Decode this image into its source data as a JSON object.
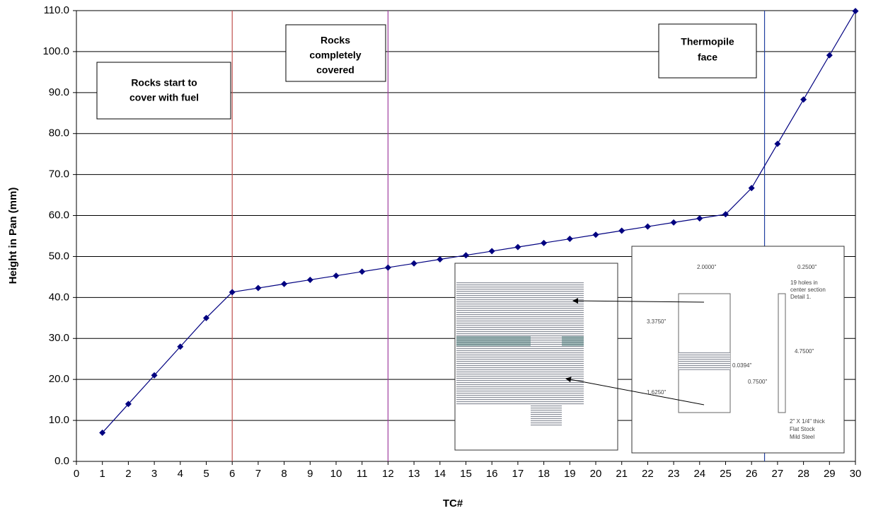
{
  "chart_data": {
    "type": "line",
    "x_label": "TC#",
    "y_label": "Height in Pan (mm)",
    "x": [
      1,
      2,
      3,
      4,
      5,
      6,
      7,
      8,
      9,
      10,
      11,
      12,
      13,
      14,
      15,
      16,
      17,
      18,
      19,
      20,
      21,
      22,
      23,
      24,
      25,
      26,
      27,
      28,
      29,
      30
    ],
    "series": [
      {
        "color": "#000080",
        "values": [
          7,
          14,
          21,
          28,
          35,
          41.3,
          42.3,
          43.3,
          44.3,
          45.3,
          46.3,
          47.3,
          48.3,
          49.3,
          50.3,
          51.3,
          52.3,
          53.3,
          54.3,
          55.3,
          56.3,
          57.3,
          58.3,
          59.3,
          60.3,
          66.7,
          77.5,
          88.3,
          99.1,
          109.9
        ]
      }
    ],
    "xlim": [
      0,
      30
    ],
    "xticks": [
      0,
      1,
      2,
      3,
      4,
      5,
      6,
      7,
      8,
      9,
      10,
      11,
      12,
      13,
      14,
      15,
      16,
      17,
      18,
      19,
      20,
      21,
      22,
      23,
      24,
      25,
      26,
      27,
      28,
      29,
      30
    ],
    "ylim": [
      0,
      110
    ],
    "yticks": [
      {
        "value": 0,
        "label": "0.0"
      },
      {
        "value": 10,
        "label": "10.0"
      },
      {
        "value": 20,
        "label": "20.0"
      },
      {
        "value": 30,
        "label": "30.0"
      },
      {
        "value": 40,
        "label": "40.0"
      },
      {
        "value": 50,
        "label": "50.0"
      },
      {
        "value": 60,
        "label": "60.0"
      },
      {
        "value": 70,
        "label": "70.0"
      },
      {
        "value": 80,
        "label": "80.0"
      },
      {
        "value": 90,
        "label": "90.0"
      },
      {
        "value": 100,
        "label": "100.0"
      },
      {
        "value": 110,
        "label": "110.0"
      }
    ],
    "grid": true,
    "vlines": [
      {
        "x": 6,
        "color": "#c0504d"
      },
      {
        "x": 12,
        "color": "#a040a0"
      },
      {
        "x": 26.5,
        "color": "#1f3fa0"
      }
    ],
    "annotations": [
      {
        "text": [
          "Rocks start to",
          "cover with fuel"
        ]
      },
      {
        "text": [
          "Rocks",
          "completely",
          "covered"
        ]
      },
      {
        "text": [
          "Thermopile",
          "face"
        ]
      }
    ],
    "inset_labels": [
      "2.0000\"",
      "0.2500\"",
      "19 holes in",
      "center section",
      "Detail 1.",
      "3.3750\"",
      "4.7500\"",
      "0.0394\"",
      "0.7500\"",
      "1.6250\"",
      "2\" X 1/4\" thick",
      "Flat Stock",
      "Mild Steel"
    ]
  }
}
